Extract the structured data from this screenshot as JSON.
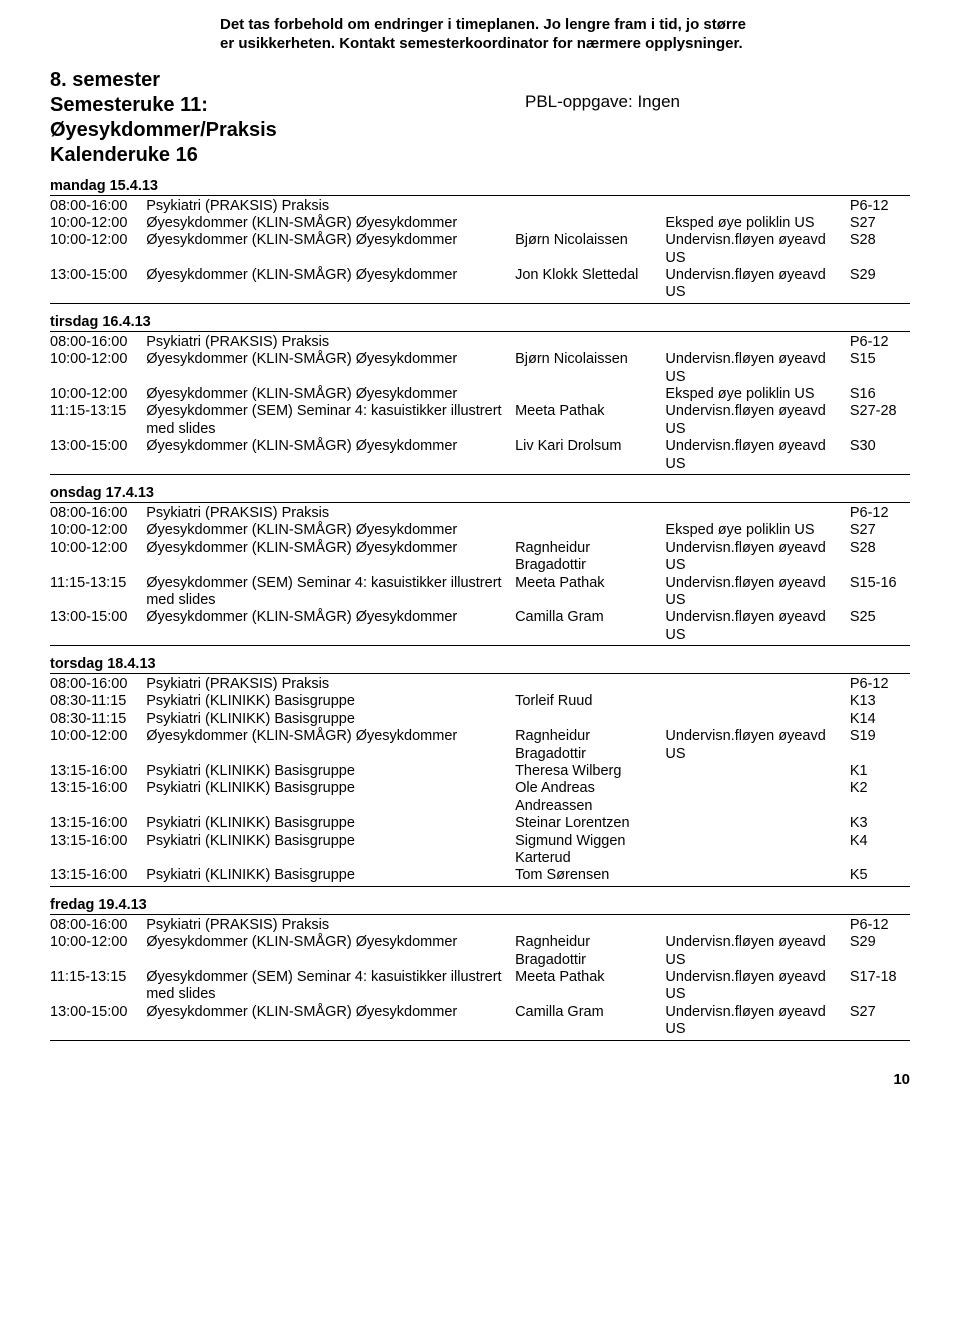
{
  "disclaimer_l1": "Det tas forbehold om endringer i timeplanen. Jo lengre fram i tid, jo større",
  "disclaimer_l2": "er usikkerheten. Kontakt semesterkoordinator for nærmere opplysninger.",
  "header": {
    "line1": "8. semester",
    "line2": "Semesteruke 11:",
    "line3": "Øyesykdommer/Praksis",
    "line4": "Kalenderuke 16",
    "pbl": "PBL-oppgave: Ingen"
  },
  "page_number": "10",
  "days": [
    {
      "title": "mandag 15.4.13",
      "rows": [
        {
          "time": "08:00-16:00",
          "subj": "Psykiatri (PRAKSIS) Praksis",
          "inst": "",
          "loc": "",
          "room": "P6-12"
        },
        {
          "time": "10:00-12:00",
          "subj": "Øyesykdommer (KLIN-SMÅGR) Øyesykdommer",
          "inst": "",
          "loc": "Eksped øye poliklin US",
          "room": "S27"
        },
        {
          "time": "10:00-12:00",
          "subj": "Øyesykdommer (KLIN-SMÅGR) Øyesykdommer",
          "inst": "Bjørn Nicolaissen",
          "loc": "Undervisn.fløyen øyeavd US",
          "room": "S28"
        },
        {
          "time": "13:00-15:00",
          "subj": "Øyesykdommer (KLIN-SMÅGR) Øyesykdommer",
          "inst": "Jon Klokk Slettedal",
          "loc": "Undervisn.fløyen øyeavd US",
          "room": "S29"
        }
      ]
    },
    {
      "title": "tirsdag 16.4.13",
      "rows": [
        {
          "time": "08:00-16:00",
          "subj": "Psykiatri (PRAKSIS) Praksis",
          "inst": "",
          "loc": "",
          "room": "P6-12"
        },
        {
          "time": "10:00-12:00",
          "subj": "Øyesykdommer (KLIN-SMÅGR) Øyesykdommer",
          "inst": "Bjørn Nicolaissen",
          "loc": "Undervisn.fløyen øyeavd US",
          "room": "S15"
        },
        {
          "time": "10:00-12:00",
          "subj": "Øyesykdommer (KLIN-SMÅGR) Øyesykdommer",
          "inst": "",
          "loc": "Eksped øye poliklin US",
          "room": "S16"
        },
        {
          "time": "11:15-13:15",
          "subj": "Øyesykdommer (SEM) Seminar 4: kasuistikker illustrert med slides",
          "inst": "Meeta Pathak",
          "loc": "Undervisn.fløyen øyeavd US",
          "room": "S27-28"
        },
        {
          "time": "13:00-15:00",
          "subj": "Øyesykdommer (KLIN-SMÅGR) Øyesykdommer",
          "inst": "Liv Kari Drolsum",
          "loc": "Undervisn.fløyen øyeavd US",
          "room": "S30"
        }
      ]
    },
    {
      "title": "onsdag 17.4.13",
      "rows": [
        {
          "time": "08:00-16:00",
          "subj": "Psykiatri (PRAKSIS) Praksis",
          "inst": "",
          "loc": "",
          "room": "P6-12"
        },
        {
          "time": "10:00-12:00",
          "subj": "Øyesykdommer (KLIN-SMÅGR) Øyesykdommer",
          "inst": "",
          "loc": "Eksped øye poliklin US",
          "room": "S27"
        },
        {
          "time": "10:00-12:00",
          "subj": "Øyesykdommer (KLIN-SMÅGR) Øyesykdommer",
          "inst": "Ragnheidur Bragadottir",
          "loc": "Undervisn.fløyen øyeavd US",
          "room": "S28"
        },
        {
          "time": "11:15-13:15",
          "subj": "Øyesykdommer (SEM) Seminar 4: kasuistikker illustrert med slides",
          "inst": "Meeta Pathak",
          "loc": "Undervisn.fløyen øyeavd US",
          "room": "S15-16"
        },
        {
          "time": "13:00-15:00",
          "subj": "Øyesykdommer (KLIN-SMÅGR) Øyesykdommer",
          "inst": "Camilla Gram",
          "loc": "Undervisn.fløyen øyeavd US",
          "room": "S25"
        }
      ]
    },
    {
      "title": "torsdag 18.4.13",
      "rows": [
        {
          "time": "08:00-16:00",
          "subj": "Psykiatri (PRAKSIS) Praksis",
          "inst": "",
          "loc": "",
          "room": "P6-12"
        },
        {
          "time": "08:30-11:15",
          "subj": "Psykiatri (KLINIKK) Basisgruppe",
          "inst": "Torleif Ruud",
          "loc": "",
          "room": "K13"
        },
        {
          "time": "08:30-11:15",
          "subj": "Psykiatri (KLINIKK) Basisgruppe",
          "inst": "",
          "loc": "",
          "room": "K14"
        },
        {
          "time": "10:00-12:00",
          "subj": "Øyesykdommer (KLIN-SMÅGR) Øyesykdommer",
          "inst": "Ragnheidur Bragadottir",
          "loc": "Undervisn.fløyen øyeavd US",
          "room": "S19"
        },
        {
          "time": "13:15-16:00",
          "subj": "Psykiatri (KLINIKK) Basisgruppe",
          "inst": "Theresa Wilberg",
          "loc": "",
          "room": "K1"
        },
        {
          "time": "13:15-16:00",
          "subj": "Psykiatri (KLINIKK) Basisgruppe",
          "inst": "Ole Andreas Andreassen",
          "loc": "",
          "room": "K2"
        },
        {
          "time": "13:15-16:00",
          "subj": "Psykiatri (KLINIKK) Basisgruppe",
          "inst": "Steinar Lorentzen",
          "loc": "",
          "room": "K3"
        },
        {
          "time": "13:15-16:00",
          "subj": "Psykiatri (KLINIKK) Basisgruppe",
          "inst": "Sigmund Wiggen Karterud",
          "loc": "",
          "room": "K4"
        },
        {
          "time": "13:15-16:00",
          "subj": "Psykiatri (KLINIKK) Basisgruppe",
          "inst": "Tom Sørensen",
          "loc": "",
          "room": "K5"
        }
      ]
    },
    {
      "title": "fredag 19.4.13",
      "rows": [
        {
          "time": "08:00-16:00",
          "subj": "Psykiatri (PRAKSIS) Praksis",
          "inst": "",
          "loc": "",
          "room": "P6-12"
        },
        {
          "time": "10:00-12:00",
          "subj": "Øyesykdommer (KLIN-SMÅGR) Øyesykdommer",
          "inst": "Ragnheidur Bragadottir",
          "loc": "Undervisn.fløyen øyeavd US",
          "room": "S29"
        },
        {
          "time": "11:15-13:15",
          "subj": "Øyesykdommer (SEM) Seminar 4: kasuistikker illustrert med slides",
          "inst": "Meeta Pathak",
          "loc": "Undervisn.fløyen øyeavd US",
          "room": "S17-18"
        },
        {
          "time": "13:00-15:00",
          "subj": "Øyesykdommer (KLIN-SMÅGR) Øyesykdommer",
          "inst": "Camilla Gram",
          "loc": "Undervisn.fløyen øyeavd US",
          "room": "S27"
        }
      ]
    }
  ]
}
